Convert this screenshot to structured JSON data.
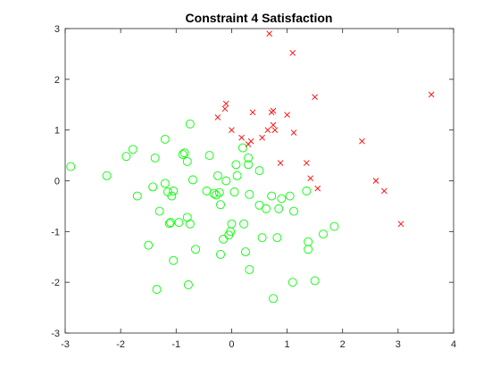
{
  "chart_data": {
    "type": "scatter",
    "title": "Constraint 4 Satisfaction",
    "xlabel": "",
    "ylabel": "",
    "xlim": [
      -3,
      4
    ],
    "ylim": [
      -3,
      3
    ],
    "xticks": [
      -3,
      -2,
      -1,
      0,
      1,
      2,
      3,
      4
    ],
    "yticks": [
      -3,
      -2,
      -1,
      0,
      1,
      2,
      3
    ],
    "xtick_labels": [
      "-3",
      "-2",
      "-1",
      "0",
      "1",
      "2",
      "3",
      "4"
    ],
    "ytick_labels": [
      "-3",
      "-2",
      "-1",
      "0",
      "1",
      "2",
      "3"
    ],
    "grid": false,
    "legend": "none",
    "series": [
      {
        "marker": "circle",
        "color": "#00ff00",
        "points": [
          [
            -2.9,
            0.28
          ],
          [
            -2.25,
            0.1
          ],
          [
            -1.9,
            0.48
          ],
          [
            -1.78,
            0.62
          ],
          [
            -1.7,
            -0.3
          ],
          [
            -1.5,
            -1.27
          ],
          [
            -1.42,
            -0.12
          ],
          [
            -1.38,
            0.45
          ],
          [
            -1.35,
            -2.14
          ],
          [
            -1.3,
            -0.6
          ],
          [
            -1.2,
            0.82
          ],
          [
            -1.2,
            -0.05
          ],
          [
            -1.15,
            -0.22
          ],
          [
            -1.12,
            -0.84
          ],
          [
            -1.1,
            -0.82
          ],
          [
            -1.08,
            -0.3
          ],
          [
            -1.05,
            -1.57
          ],
          [
            -1.05,
            -0.2
          ],
          [
            -0.95,
            -0.82
          ],
          [
            -0.88,
            0.52
          ],
          [
            -0.85,
            0.55
          ],
          [
            -0.8,
            0.38
          ],
          [
            -0.8,
            -0.72
          ],
          [
            -0.78,
            -2.05
          ],
          [
            -0.75,
            1.12
          ],
          [
            -0.75,
            -0.85
          ],
          [
            -0.7,
            0.02
          ],
          [
            -0.65,
            -1.35
          ],
          [
            -0.45,
            -0.2
          ],
          [
            -0.4,
            0.5
          ],
          [
            -0.32,
            -0.25
          ],
          [
            -0.28,
            -0.28
          ],
          [
            -0.25,
            0.1
          ],
          [
            -0.22,
            -0.23
          ],
          [
            -0.2,
            -1.45
          ],
          [
            -0.2,
            -0.47
          ],
          [
            -0.15,
            -1.15
          ],
          [
            -0.1,
            0.0
          ],
          [
            -0.05,
            -1.07
          ],
          [
            -0.02,
            -1.0
          ],
          [
            0.0,
            -0.85
          ],
          [
            0.05,
            -0.22
          ],
          [
            0.08,
            0.32
          ],
          [
            0.1,
            0.1
          ],
          [
            0.2,
            0.65
          ],
          [
            0.22,
            -0.85
          ],
          [
            0.25,
            -1.4
          ],
          [
            0.3,
            0.45
          ],
          [
            0.3,
            0.32
          ],
          [
            0.32,
            -0.27
          ],
          [
            0.32,
            -1.75
          ],
          [
            0.5,
            0.2
          ],
          [
            0.5,
            -0.48
          ],
          [
            0.55,
            -1.12
          ],
          [
            0.62,
            -0.55
          ],
          [
            0.72,
            -0.3
          ],
          [
            0.75,
            -2.32
          ],
          [
            0.82,
            -1.12
          ],
          [
            0.85,
            -0.55
          ],
          [
            0.9,
            -0.35
          ],
          [
            1.05,
            -0.3
          ],
          [
            1.1,
            -2.0
          ],
          [
            1.12,
            -0.6
          ],
          [
            1.35,
            -0.2
          ],
          [
            1.38,
            -1.2
          ],
          [
            1.38,
            -1.35
          ],
          [
            1.5,
            -1.97
          ],
          [
            1.65,
            -1.05
          ],
          [
            1.85,
            -0.9
          ]
        ]
      },
      {
        "marker": "x",
        "color": "#ff0000",
        "points": [
          [
            -0.25,
            1.25
          ],
          [
            -0.12,
            1.42
          ],
          [
            -0.1,
            1.52
          ],
          [
            0.0,
            1.0
          ],
          [
            0.18,
            0.85
          ],
          [
            0.3,
            0.72
          ],
          [
            0.35,
            0.78
          ],
          [
            0.38,
            1.35
          ],
          [
            0.55,
            0.85
          ],
          [
            0.65,
            1.0
          ],
          [
            0.68,
            2.9
          ],
          [
            0.72,
            1.35
          ],
          [
            0.75,
            1.38
          ],
          [
            0.75,
            1.1
          ],
          [
            0.78,
            1.0
          ],
          [
            0.88,
            0.35
          ],
          [
            1.0,
            1.3
          ],
          [
            1.1,
            2.52
          ],
          [
            1.12,
            0.95
          ],
          [
            1.35,
            0.35
          ],
          [
            1.42,
            0.05
          ],
          [
            1.5,
            1.65
          ],
          [
            1.55,
            -0.15
          ],
          [
            2.35,
            0.78
          ],
          [
            2.6,
            0.0
          ],
          [
            2.75,
            -0.2
          ],
          [
            3.05,
            -0.85
          ],
          [
            3.6,
            1.7
          ]
        ]
      }
    ]
  }
}
